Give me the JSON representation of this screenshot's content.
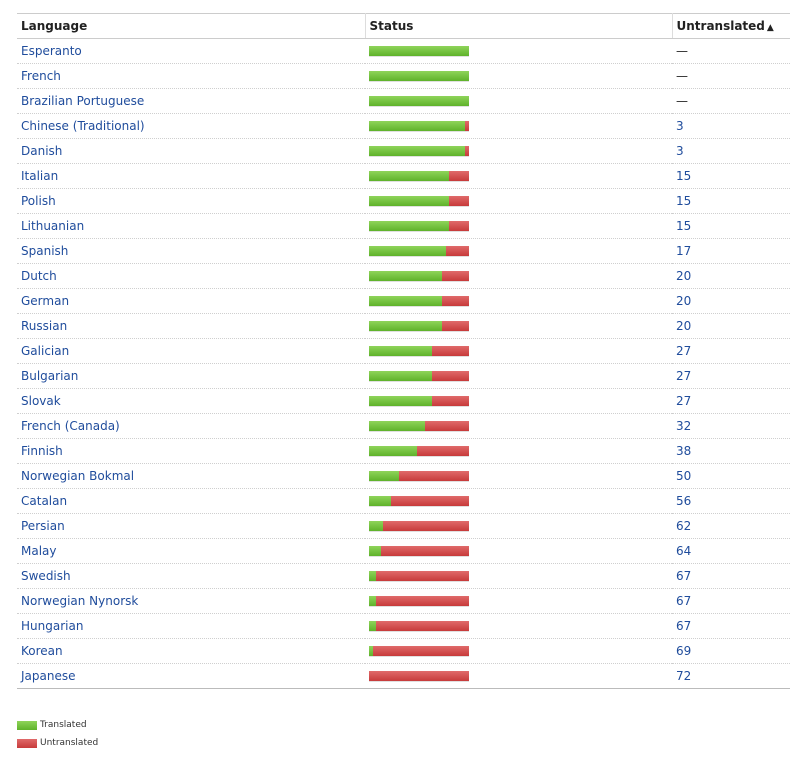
{
  "table": {
    "headers": {
      "language": "Language",
      "status": "Status",
      "untranslated": "Untranslated",
      "sort_arrow": "▲"
    },
    "rows": [
      {
        "language": "Esperanto",
        "translated_fraction": 1.0,
        "untranslated": "—"
      },
      {
        "language": "French",
        "translated_fraction": 1.0,
        "untranslated": "—"
      },
      {
        "language": "Brazilian Portuguese",
        "translated_fraction": 1.0,
        "untranslated": "—"
      },
      {
        "language": "Chinese (Traditional)",
        "translated_fraction": 0.96,
        "untranslated": "3"
      },
      {
        "language": "Danish",
        "translated_fraction": 0.96,
        "untranslated": "3"
      },
      {
        "language": "Italian",
        "translated_fraction": 0.8,
        "untranslated": "15"
      },
      {
        "language": "Polish",
        "translated_fraction": 0.8,
        "untranslated": "15"
      },
      {
        "language": "Lithuanian",
        "translated_fraction": 0.8,
        "untranslated": "15"
      },
      {
        "language": "Spanish",
        "translated_fraction": 0.77,
        "untranslated": "17"
      },
      {
        "language": "Dutch",
        "translated_fraction": 0.73,
        "untranslated": "20"
      },
      {
        "language": "German",
        "translated_fraction": 0.73,
        "untranslated": "20"
      },
      {
        "language": "Russian",
        "translated_fraction": 0.73,
        "untranslated": "20"
      },
      {
        "language": "Galician",
        "translated_fraction": 0.63,
        "untranslated": "27"
      },
      {
        "language": "Bulgarian",
        "translated_fraction": 0.63,
        "untranslated": "27"
      },
      {
        "language": "Slovak",
        "translated_fraction": 0.63,
        "untranslated": "27"
      },
      {
        "language": "French (Canada)",
        "translated_fraction": 0.56,
        "untranslated": "32"
      },
      {
        "language": "Finnish",
        "translated_fraction": 0.48,
        "untranslated": "38"
      },
      {
        "language": "Norwegian Bokmal",
        "translated_fraction": 0.3,
        "untranslated": "50"
      },
      {
        "language": "Catalan",
        "translated_fraction": 0.22,
        "untranslated": "56"
      },
      {
        "language": "Persian",
        "translated_fraction": 0.14,
        "untranslated": "62"
      },
      {
        "language": "Malay",
        "translated_fraction": 0.12,
        "untranslated": "64"
      },
      {
        "language": "Swedish",
        "translated_fraction": 0.07,
        "untranslated": "67"
      },
      {
        "language": "Norwegian Nynorsk",
        "translated_fraction": 0.07,
        "untranslated": "67"
      },
      {
        "language": "Hungarian",
        "translated_fraction": 0.07,
        "untranslated": "67"
      },
      {
        "language": "Korean",
        "translated_fraction": 0.04,
        "untranslated": "69"
      },
      {
        "language": "Japanese",
        "translated_fraction": 0.0,
        "untranslated": "72"
      }
    ]
  },
  "legend": {
    "translated": "Translated",
    "untranslated": "Untranslated"
  },
  "colors": {
    "translated": "#6cbf36",
    "untranslated": "#d24b4b",
    "link": "#1f4c9c"
  }
}
